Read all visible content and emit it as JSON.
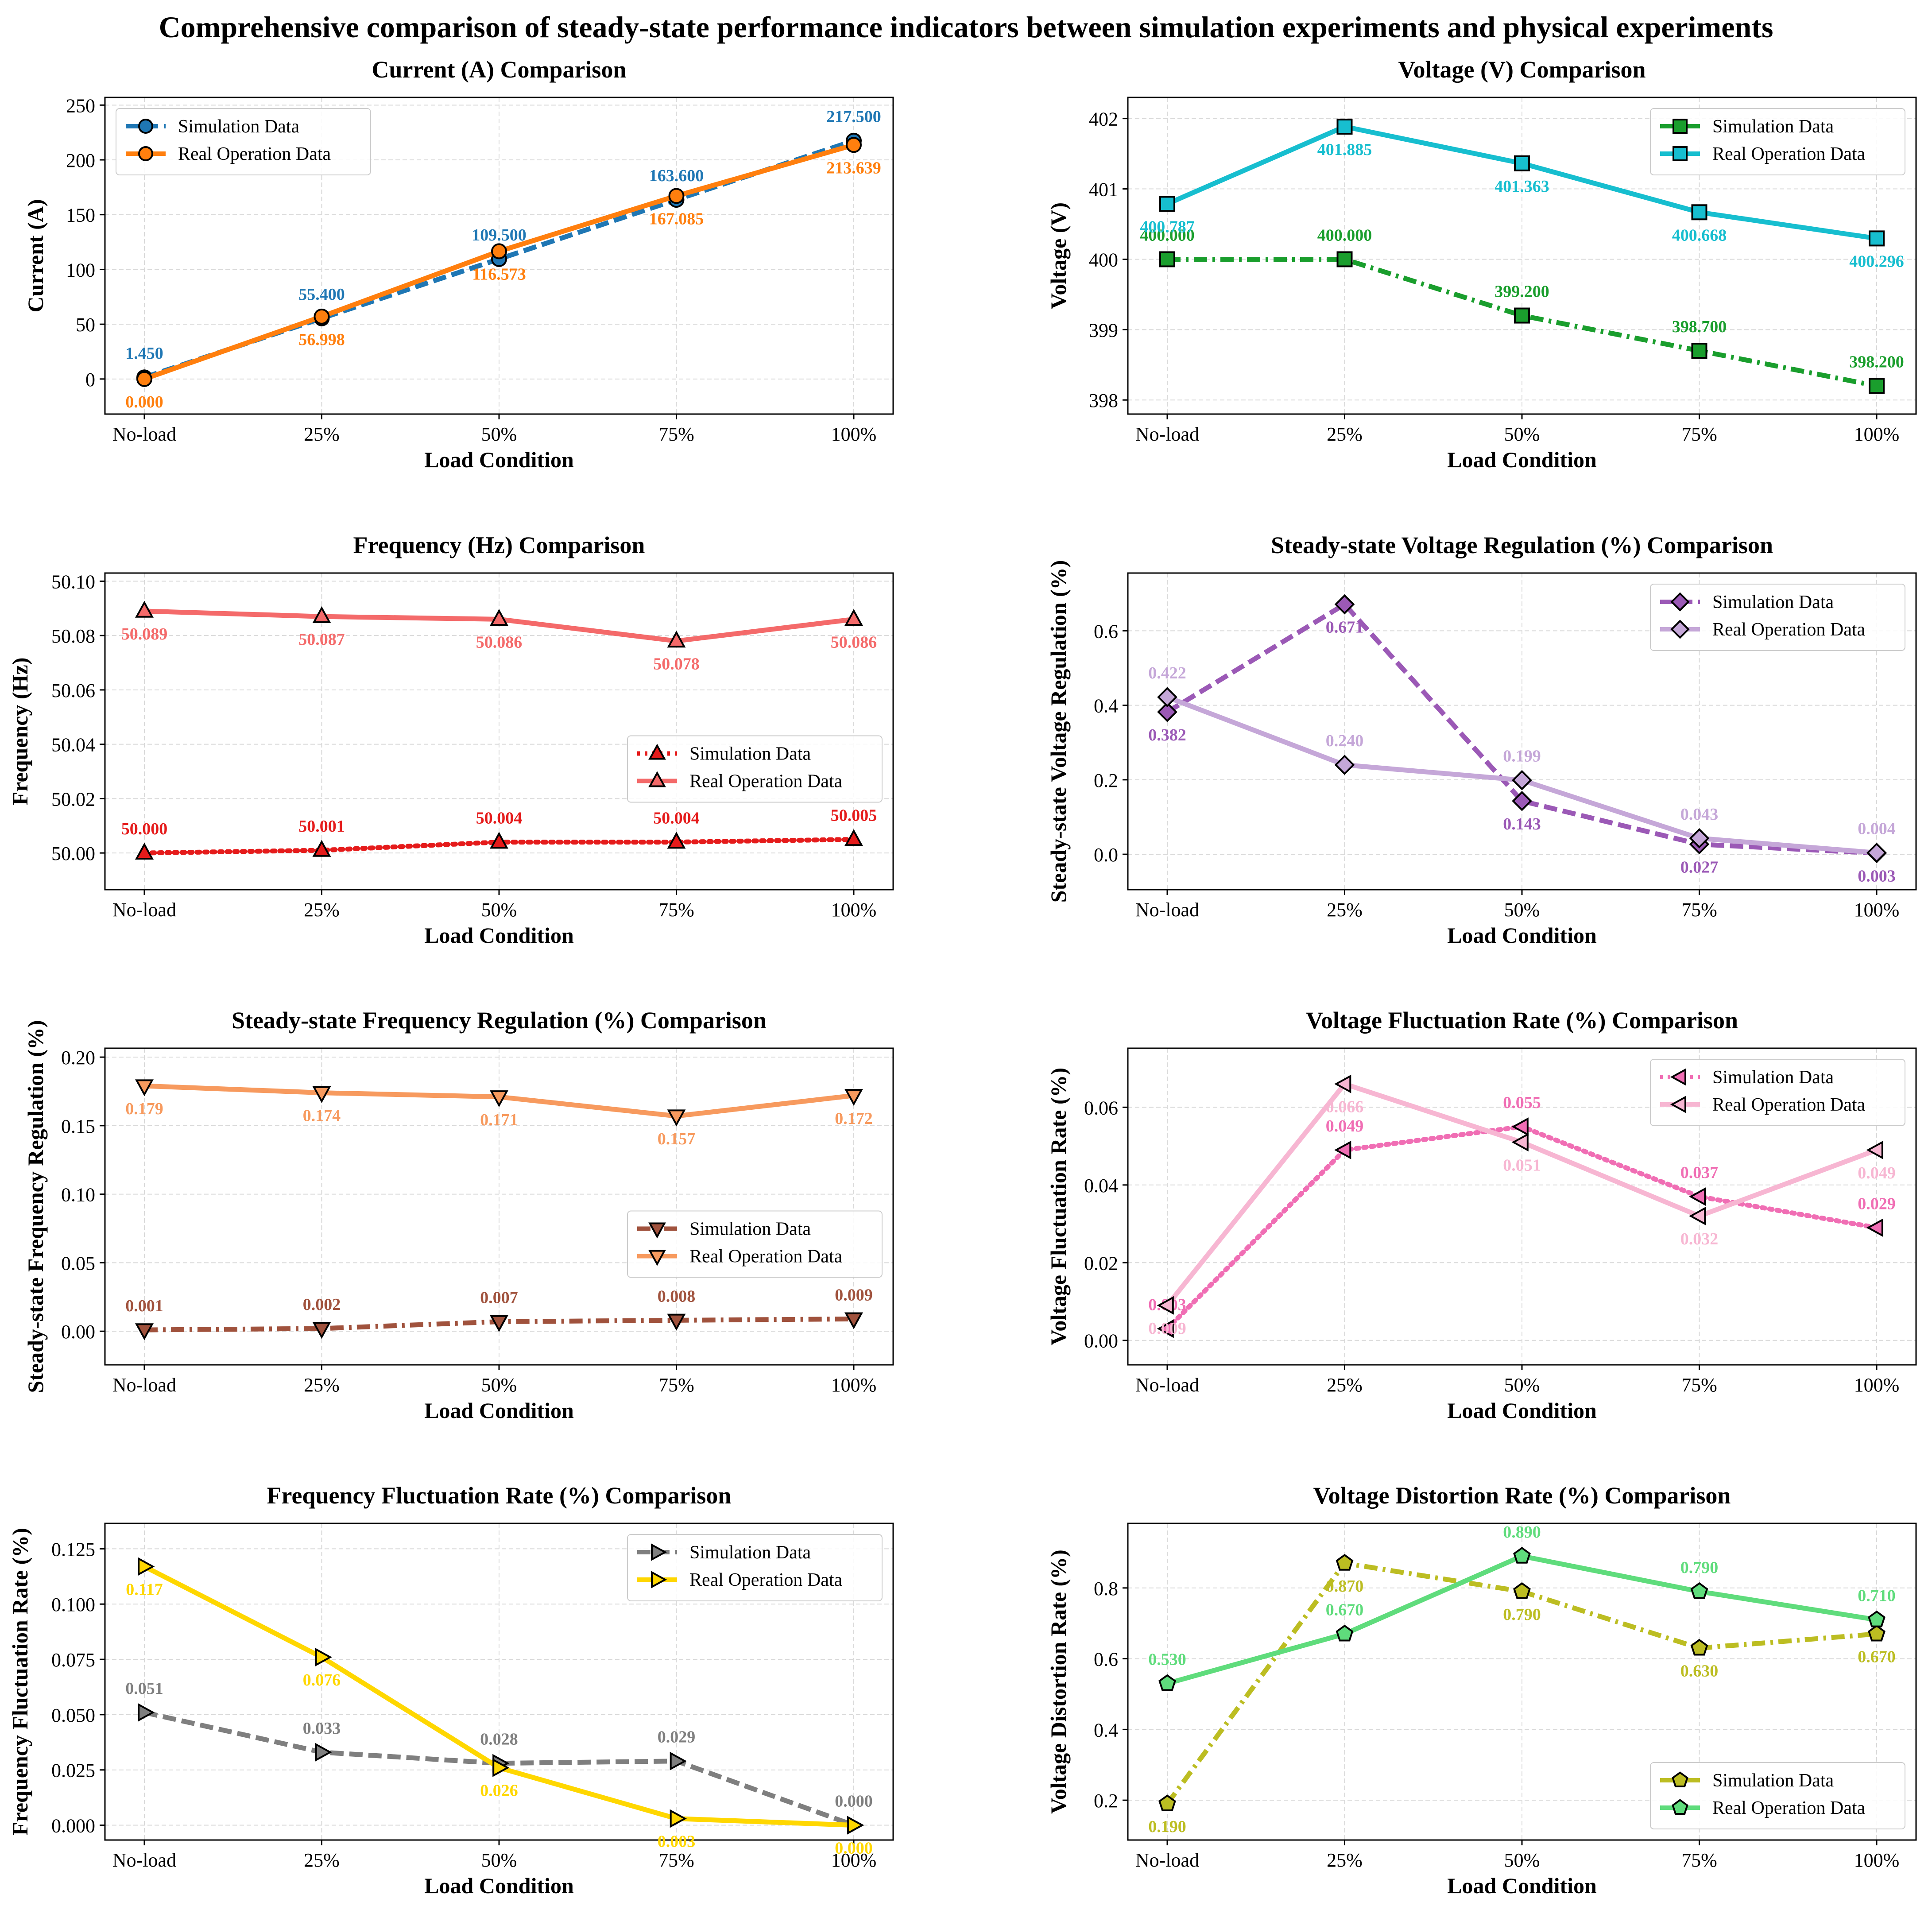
{
  "title": "Comprehensive comparison of steady-state performance indicators between simulation experiments and physical experiments",
  "chart_data": [
    {
      "type": "line",
      "title": "Current (A) Comparison",
      "xlabel": "Load Condition",
      "ylabel": "Current (A)",
      "categories": [
        "No-load",
        "25%",
        "50%",
        "75%",
        "100%"
      ],
      "ylim": [
        -32,
        257
      ],
      "yticks": [
        0,
        50,
        100,
        150,
        200,
        250
      ],
      "ytick_labels": [
        "0",
        "50",
        "100",
        "150",
        "200",
        "250"
      ],
      "grid": true,
      "legend": "top-left",
      "series": [
        {
          "name": "Simulation Data",
          "values": [
            1.45,
            55.4,
            109.5,
            163.6,
            217.5
          ],
          "labels": [
            "1.450",
            "55.400",
            "109.500",
            "163.600",
            "217.500"
          ],
          "color": "#1f77b4",
          "marker_color": "#1f77b4",
          "dash": "dashed",
          "marker": "circle",
          "label_pos": "above"
        },
        {
          "name": "Real Operation Data",
          "values": [
            0.0,
            56.998,
            116.573,
            167.085,
            213.639
          ],
          "labels": [
            "0.000",
            "56.998",
            "116.573",
            "167.085",
            "213.639"
          ],
          "color": "#ff7f0e",
          "marker_color": "#ff7f0e",
          "dash": "solid",
          "marker": "circle",
          "label_pos": "below"
        }
      ]
    },
    {
      "type": "line",
      "title": "Voltage (V) Comparison",
      "xlabel": "Load Condition",
      "ylabel": "Voltage (V)",
      "categories": [
        "No-load",
        "25%",
        "50%",
        "75%",
        "100%"
      ],
      "ylim": [
        397.8,
        402.3
      ],
      "yticks": [
        398,
        399,
        400,
        401,
        402
      ],
      "ytick_labels": [
        "398",
        "399",
        "400",
        "401",
        "402"
      ],
      "grid": true,
      "legend": "top-right",
      "series": [
        {
          "name": "Simulation Data",
          "values": [
            400.0,
            400.0,
            399.2,
            398.7,
            398.2
          ],
          "labels": [
            "400.000",
            "400.000",
            "399.200",
            "398.700",
            "398.200"
          ],
          "color": "#1a9e2d",
          "marker_color": "#1a9e2d",
          "dash": "dashdot",
          "marker": "square",
          "label_pos": "above"
        },
        {
          "name": "Real Operation Data",
          "values": [
            400.787,
            401.885,
            401.363,
            400.668,
            400.296
          ],
          "labels": [
            "400.787",
            "401.885",
            "401.363",
            "400.668",
            "400.296"
          ],
          "color": "#17becf",
          "marker_color": "#17becf",
          "dash": "solid",
          "marker": "square",
          "label_pos": "below"
        }
      ]
    },
    {
      "type": "line",
      "title": "Frequency (Hz) Comparison",
      "xlabel": "Load Condition",
      "ylabel": "Frequency (Hz)",
      "categories": [
        "No-load",
        "25%",
        "50%",
        "75%",
        "100%"
      ],
      "ylim": [
        49.9865,
        50.103
      ],
      "yticks": [
        50.0,
        50.02,
        50.04,
        50.06,
        50.08,
        50.1
      ],
      "ytick_labels": [
        "50.00",
        "50.02",
        "50.04",
        "50.06",
        "50.08",
        "50.10"
      ],
      "grid": true,
      "legend": "center-right",
      "series": [
        {
          "name": "Simulation Data",
          "values": [
            50.0,
            50.001,
            50.004,
            50.004,
            50.005
          ],
          "labels": [
            "50.000",
            "50.001",
            "50.004",
            "50.004",
            "50.005"
          ],
          "color": "#e51b1b",
          "marker_color": "#e51b1b",
          "dash": "dotted",
          "marker": "triangle-up",
          "label_pos": "above"
        },
        {
          "name": "Real Operation Data",
          "values": [
            50.089,
            50.087,
            50.086,
            50.078,
            50.086
          ],
          "labels": [
            "50.089",
            "50.087",
            "50.086",
            "50.078",
            "50.086"
          ],
          "color": "#f46a6a",
          "marker_color": "#f46a6a",
          "dash": "solid",
          "marker": "triangle-up",
          "label_pos": "below"
        }
      ]
    },
    {
      "type": "line",
      "title": "Steady-state Voltage Regulation (%) Comparison",
      "xlabel": "Load Condition",
      "ylabel": "Steady-state Voltage Regulation (%)",
      "categories": [
        "No-load",
        "25%",
        "50%",
        "75%",
        "100%"
      ],
      "ylim": [
        -0.095,
        0.755
      ],
      "yticks": [
        0.0,
        0.2,
        0.4,
        0.6
      ],
      "ytick_labels": [
        "0.0",
        "0.2",
        "0.4",
        "0.6"
      ],
      "grid": true,
      "legend": "top-right",
      "series": [
        {
          "name": "Simulation Data",
          "values": [
            0.382,
            0.671,
            0.143,
            0.027,
            0.003
          ],
          "labels": [
            "0.382",
            "0.671",
            "0.143",
            "0.027",
            "0.003"
          ],
          "color": "#9b59b6",
          "marker_color": "#9b59b6",
          "dash": "dashed",
          "marker": "diamond",
          "label_pos": "below"
        },
        {
          "name": "Real Operation Data",
          "values": [
            0.422,
            0.24,
            0.199,
            0.043,
            0.004
          ],
          "labels": [
            "0.422",
            "0.240",
            "0.199",
            "0.043",
            "0.004"
          ],
          "color": "#c5a7d8",
          "marker_color": "#c5a7d8",
          "dash": "solid",
          "marker": "diamond",
          "label_pos": "above"
        }
      ]
    },
    {
      "type": "line",
      "title": "Steady-state Frequency Regulation (%) Comparison",
      "xlabel": "Load Condition",
      "ylabel": "Steady-state Frequency Regulation (%)",
      "categories": [
        "No-load",
        "25%",
        "50%",
        "75%",
        "100%"
      ],
      "ylim": [
        -0.0245,
        0.2065
      ],
      "yticks": [
        0.0,
        0.05,
        0.1,
        0.15,
        0.2
      ],
      "ytick_labels": [
        "0.00",
        "0.05",
        "0.10",
        "0.15",
        "0.20"
      ],
      "grid": true,
      "legend": "center-right",
      "series": [
        {
          "name": "Simulation Data",
          "values": [
            0.001,
            0.002,
            0.007,
            0.008,
            0.009
          ],
          "labels": [
            "0.001",
            "0.002",
            "0.007",
            "0.008",
            "0.009"
          ],
          "color": "#a0523d",
          "marker_color": "#a0523d",
          "dash": "dashdot",
          "marker": "triangle-down",
          "label_pos": "above"
        },
        {
          "name": "Real Operation Data",
          "values": [
            0.179,
            0.174,
            0.171,
            0.157,
            0.172
          ],
          "labels": [
            "0.179",
            "0.174",
            "0.171",
            "0.157",
            "0.172"
          ],
          "color": "#f79a5e",
          "marker_color": "#f79a5e",
          "dash": "solid",
          "marker": "triangle-down",
          "label_pos": "below"
        }
      ]
    },
    {
      "type": "line",
      "title": "Voltage Fluctuation Rate (%) Comparison",
      "xlabel": "Load Condition",
      "ylabel": "Voltage Fluctuation Rate (%)",
      "categories": [
        "No-load",
        "25%",
        "50%",
        "75%",
        "100%"
      ],
      "ylim": [
        -0.0063,
        0.0752
      ],
      "yticks": [
        0.0,
        0.02,
        0.04,
        0.06
      ],
      "ytick_labels": [
        "0.00",
        "0.02",
        "0.04",
        "0.06"
      ],
      "grid": true,
      "legend": "top-right",
      "series": [
        {
          "name": "Simulation Data",
          "values": [
            0.003,
            0.049,
            0.055,
            0.037,
            0.029
          ],
          "labels": [
            "0.003",
            "0.049",
            "0.055",
            "0.037",
            "0.029"
          ],
          "color": "#f06eb4",
          "marker_color": "#f06eb4",
          "dash": "dotted",
          "marker": "triangle-left",
          "label_pos": "above"
        },
        {
          "name": "Real Operation Data",
          "values": [
            0.009,
            0.066,
            0.051,
            0.032,
            0.049
          ],
          "labels": [
            "0.009",
            "0.066",
            "0.051",
            "0.032",
            "0.049"
          ],
          "color": "#f7b6d2",
          "marker_color": "#f7b6d2",
          "dash": "solid",
          "marker": "triangle-left",
          "label_pos": "below"
        }
      ]
    },
    {
      "type": "line",
      "title": "Frequency Fluctuation Rate (%) Comparison",
      "xlabel": "Load Condition",
      "ylabel": "Frequency Fluctuation Rate (%)",
      "categories": [
        "No-load",
        "25%",
        "50%",
        "75%",
        "100%"
      ],
      "ylim": [
        -0.0067,
        0.1365
      ],
      "yticks": [
        0.0,
        0.025,
        0.05,
        0.075,
        0.1,
        0.125
      ],
      "ytick_labels": [
        "0.000",
        "0.025",
        "0.050",
        "0.075",
        "0.100",
        "0.125"
      ],
      "grid": true,
      "legend": "top-right",
      "series": [
        {
          "name": "Simulation Data",
          "values": [
            0.051,
            0.033,
            0.028,
            0.029,
            0.0
          ],
          "labels": [
            "0.051",
            "0.033",
            "0.028",
            "0.029",
            "0.000"
          ],
          "color": "#7f7f7f",
          "marker_color": "#7f7f7f",
          "dash": "dashed",
          "marker": "triangle-right",
          "label_pos": "above"
        },
        {
          "name": "Real Operation Data",
          "values": [
            0.117,
            0.076,
            0.026,
            0.003,
            0.0
          ],
          "labels": [
            "0.117",
            "0.076",
            "0.026",
            "0.003",
            "0.000"
          ],
          "color": "#ffd700",
          "marker_color": "#ffd700",
          "dash": "solid",
          "marker": "triangle-right",
          "label_pos": "below"
        }
      ]
    },
    {
      "type": "line",
      "title": "Voltage Distortion Rate (%) Comparison",
      "xlabel": "Load Condition",
      "ylabel": "Voltage Distortion Rate (%)",
      "categories": [
        "No-load",
        "25%",
        "50%",
        "75%",
        "100%"
      ],
      "ylim": [
        0.0875,
        0.9825
      ],
      "yticks": [
        0.2,
        0.4,
        0.6,
        0.8
      ],
      "ytick_labels": [
        "0.2",
        "0.4",
        "0.6",
        "0.8"
      ],
      "grid": true,
      "legend": "bottom-right",
      "series": [
        {
          "name": "Simulation Data",
          "values": [
            0.19,
            0.87,
            0.79,
            0.63,
            0.67
          ],
          "labels": [
            "0.190",
            "0.870",
            "0.790",
            "0.630",
            "0.670"
          ],
          "color": "#bcbd22",
          "marker_color": "#bcbd22",
          "dash": "dashdot",
          "marker": "pentagon",
          "label_pos": "below"
        },
        {
          "name": "Real Operation Data",
          "values": [
            0.53,
            0.67,
            0.89,
            0.79,
            0.71
          ],
          "labels": [
            "0.530",
            "0.670",
            "0.890",
            "0.790",
            "0.710"
          ],
          "color": "#5fdc7c",
          "marker_color": "#5fdc7c",
          "dash": "solid",
          "marker": "pentagon",
          "label_pos": "above"
        }
      ]
    }
  ]
}
